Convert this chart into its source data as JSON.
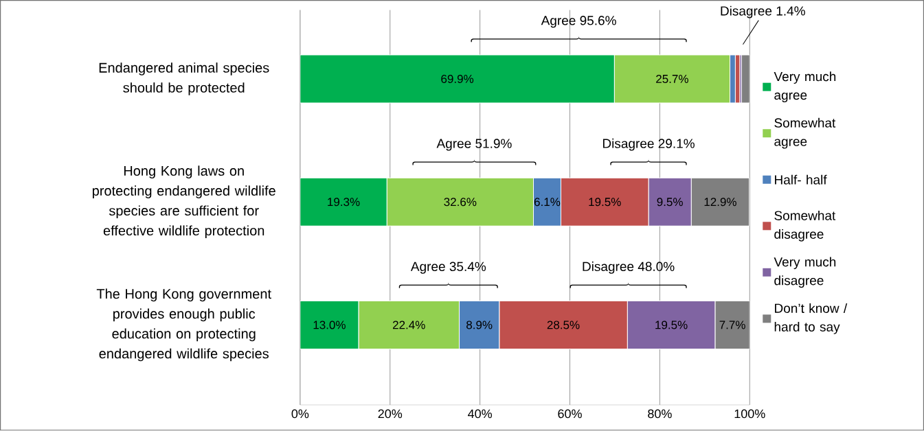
{
  "chart_data": {
    "type": "bar",
    "orientation": "horizontal",
    "stacked": true,
    "categories": [
      "Endangered animal species should be protected",
      "Hong Kong laws on protecting endangered wildlife species are sufficient for effective wildlife protection",
      "The Hong Kong government provides enough public education on protecting endangered wildlife species"
    ],
    "series": [
      {
        "name": "Very much agree",
        "color": "#00b050",
        "values": [
          69.9,
          19.3,
          13.0
        ],
        "value_labels": [
          "69.9%",
          "19.3%",
          "13.0%"
        ]
      },
      {
        "name": "Somewhat agree",
        "color": "#92d050",
        "values": [
          25.7,
          32.6,
          22.4
        ],
        "value_labels": [
          "25.7%",
          "32.6%",
          "22.4%"
        ]
      },
      {
        "name": "Half- half",
        "color": "#4f81bd",
        "values": [
          1.2,
          6.1,
          8.9
        ],
        "value_labels": [
          null,
          "6.1%",
          "8.9%"
        ]
      },
      {
        "name": "Somewhat disagree",
        "color": "#c0504d",
        "values": [
          1.0,
          19.5,
          28.5
        ],
        "value_labels": [
          null,
          "19.5%",
          "28.5%"
        ]
      },
      {
        "name": "Very much disagree",
        "color": "#8064a2",
        "values": [
          0.4,
          9.5,
          19.5
        ],
        "value_labels": [
          null,
          "9.5%",
          "19.5%"
        ]
      },
      {
        "name": "Don’t know / hard to say",
        "color": "#7f7f7f",
        "values": [
          1.8,
          12.9,
          7.7
        ],
        "value_labels": [
          null,
          "12.9%",
          "7.7%"
        ]
      }
    ],
    "xlim": [
      0,
      100
    ],
    "xticks": [
      {
        "value": 0,
        "label": "0%"
      },
      {
        "value": 20,
        "label": "20%"
      },
      {
        "value": 40,
        "label": "40%"
      },
      {
        "value": 60,
        "label": "60%"
      },
      {
        "value": 80,
        "label": "80%"
      },
      {
        "value": 100,
        "label": "100%"
      }
    ],
    "grid": "x",
    "legend": "right",
    "annotations": [
      "Agree 95.6%",
      "Disagree 1.4%",
      "Agree 51.9%",
      "Disagree 29.1%",
      "Agree 35.4%",
      "Disagree 48.0%"
    ]
  }
}
